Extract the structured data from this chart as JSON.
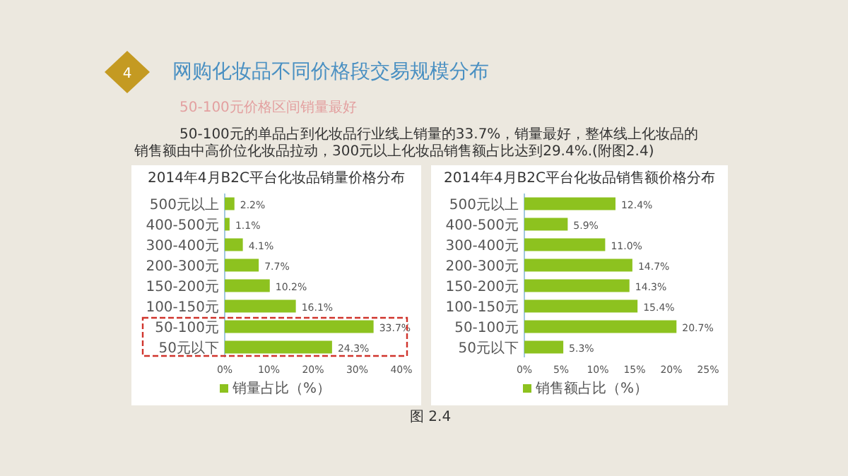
{
  "chart_data": [
    {
      "type": "other",
      "title": "网购化妆品不同价格段交易规模分布",
      "subtitle": "50-100元价格区间销量最好",
      "annotations": [
        "4",
        "50-100元的单品占到化妆品行业线上销量的33.7%，销量最好，整体线上化妆品的销售额由中高价位化妆品拉动，300元以上化妆品销售额占比达到29.4%.(附图2.4)",
        "图 2.4"
      ]
    },
    {
      "type": "bar",
      "orientation": "horizontal",
      "title": "2014年4月B2C平台化妆品销量价格分布",
      "categories": [
        "500元以上",
        "400-500元",
        "300-400元",
        "200-300元",
        "150-200元",
        "100-150元",
        "50-100元",
        "50元以下"
      ],
      "series": [
        {
          "name": "销量占比（%）",
          "color": "#8dc21f",
          "values": [
            2.2,
            1.1,
            4.1,
            7.7,
            10.2,
            16.1,
            33.7,
            24.3
          ],
          "value_labels": [
            "2.2%",
            "1.1%",
            "4.1%",
            "7.7%",
            "10.2%",
            "16.1%",
            "33.7%",
            "24.3%"
          ]
        }
      ],
      "xlim": [
        0,
        40
      ],
      "xticks": [
        {
          "value": 0,
          "label": "0%"
        },
        {
          "value": 10,
          "label": "10%"
        },
        {
          "value": 20,
          "label": "20%"
        },
        {
          "value": 30,
          "label": "30%"
        },
        {
          "value": 40,
          "label": "40%"
        }
      ],
      "legend": "bottom"
    },
    {
      "type": "bar",
      "orientation": "horizontal",
      "title": "2014年4月B2C平台化妆品销售额价格分布",
      "categories": [
        "500元以上",
        "400-500元",
        "300-400元",
        "200-300元",
        "150-200元",
        "100-150元",
        "50-100元",
        "50元以下"
      ],
      "series": [
        {
          "name": "销售额占比（%）",
          "color": "#8dc21f",
          "values": [
            12.4,
            5.9,
            11.0,
            14.7,
            14.3,
            15.4,
            20.7,
            5.3
          ],
          "value_labels": [
            "12.4%",
            "5.9%",
            "11.0%",
            "14.7%",
            "14.3%",
            "15.4%",
            "20.7%",
            "5.3%"
          ]
        }
      ],
      "xlim": [
        0,
        25
      ],
      "xticks": [
        {
          "value": 0,
          "label": "0%"
        },
        {
          "value": 5,
          "label": "5%"
        },
        {
          "value": 10,
          "label": "10%"
        },
        {
          "value": 15,
          "label": "15%"
        },
        {
          "value": 20,
          "label": "20%"
        },
        {
          "value": 25,
          "label": "25%"
        }
      ],
      "legend": "bottom"
    }
  ]
}
